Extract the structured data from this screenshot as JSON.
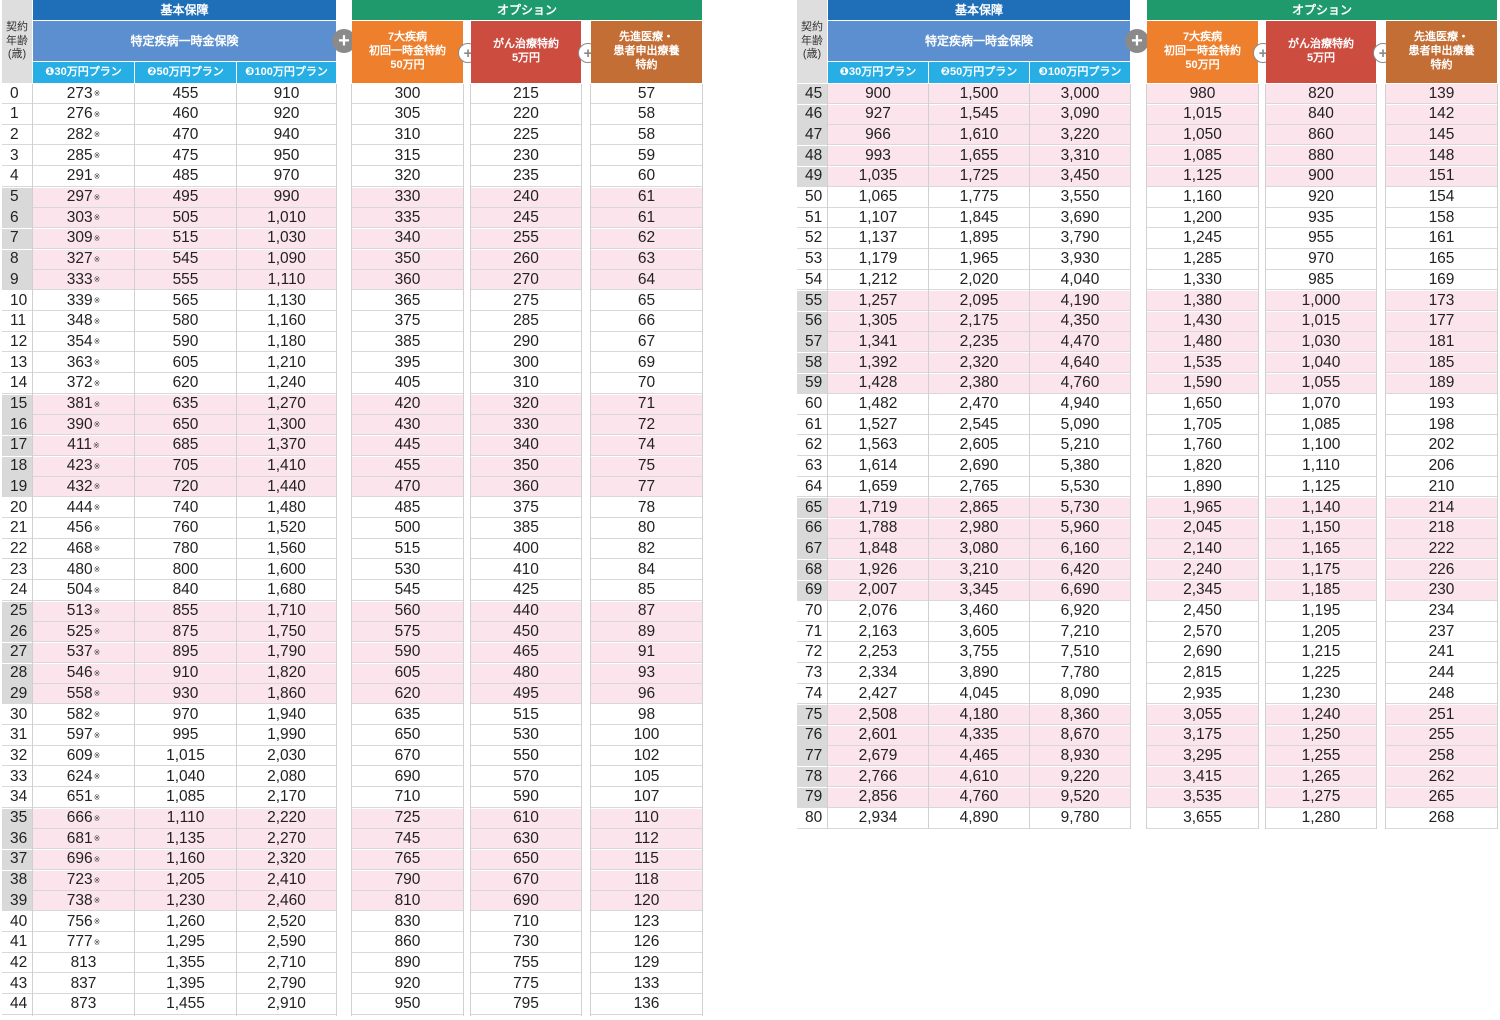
{
  "headers": {
    "age": "契約\n年齢\n(歳)",
    "kihon": "基本保障",
    "tokutei": "特定疾病一時金保険",
    "plans": [
      "❶30万円プラン",
      "❷50万円プラン",
      "❸100万円プラン"
    ],
    "option": "オプション",
    "opt1": "7大疾病\n初回一時金特約\n50万円",
    "opt2": "がん治療特約\n5万円",
    "opt3": "先進医療・\n患者申出療養\n特約",
    "plus": "+"
  },
  "note_mark": "※",
  "left_rows": [
    [
      "0",
      "273",
      true,
      "455",
      "910",
      "300",
      "215",
      "57"
    ],
    [
      "1",
      "276",
      true,
      "460",
      "920",
      "305",
      "220",
      "58"
    ],
    [
      "2",
      "282",
      true,
      "470",
      "940",
      "310",
      "225",
      "58"
    ],
    [
      "3",
      "285",
      true,
      "475",
      "950",
      "315",
      "230",
      "59"
    ],
    [
      "4",
      "291",
      true,
      "485",
      "970",
      "320",
      "235",
      "60"
    ],
    [
      "5",
      "297",
      true,
      "495",
      "990",
      "330",
      "240",
      "61"
    ],
    [
      "6",
      "303",
      true,
      "505",
      "1,010",
      "335",
      "245",
      "61"
    ],
    [
      "7",
      "309",
      true,
      "515",
      "1,030",
      "340",
      "255",
      "62"
    ],
    [
      "8",
      "327",
      true,
      "545",
      "1,090",
      "350",
      "260",
      "63"
    ],
    [
      "9",
      "333",
      true,
      "555",
      "1,110",
      "360",
      "270",
      "64"
    ],
    [
      "10",
      "339",
      true,
      "565",
      "1,130",
      "365",
      "275",
      "65"
    ],
    [
      "11",
      "348",
      true,
      "580",
      "1,160",
      "375",
      "285",
      "66"
    ],
    [
      "12",
      "354",
      true,
      "590",
      "1,180",
      "385",
      "290",
      "67"
    ],
    [
      "13",
      "363",
      true,
      "605",
      "1,210",
      "395",
      "300",
      "69"
    ],
    [
      "14",
      "372",
      true,
      "620",
      "1,240",
      "405",
      "310",
      "70"
    ],
    [
      "15",
      "381",
      true,
      "635",
      "1,270",
      "420",
      "320",
      "71"
    ],
    [
      "16",
      "390",
      true,
      "650",
      "1,300",
      "430",
      "330",
      "72"
    ],
    [
      "17",
      "411",
      true,
      "685",
      "1,370",
      "445",
      "340",
      "74"
    ],
    [
      "18",
      "423",
      true,
      "705",
      "1,410",
      "455",
      "350",
      "75"
    ],
    [
      "19",
      "432",
      true,
      "720",
      "1,440",
      "470",
      "360",
      "77"
    ],
    [
      "20",
      "444",
      true,
      "740",
      "1,480",
      "485",
      "375",
      "78"
    ],
    [
      "21",
      "456",
      true,
      "760",
      "1,520",
      "500",
      "385",
      "80"
    ],
    [
      "22",
      "468",
      true,
      "780",
      "1,560",
      "515",
      "400",
      "82"
    ],
    [
      "23",
      "480",
      true,
      "800",
      "1,600",
      "530",
      "410",
      "84"
    ],
    [
      "24",
      "504",
      true,
      "840",
      "1,680",
      "545",
      "425",
      "85"
    ],
    [
      "25",
      "513",
      true,
      "855",
      "1,710",
      "560",
      "440",
      "87"
    ],
    [
      "26",
      "525",
      true,
      "875",
      "1,750",
      "575",
      "450",
      "89"
    ],
    [
      "27",
      "537",
      true,
      "895",
      "1,790",
      "590",
      "465",
      "91"
    ],
    [
      "28",
      "546",
      true,
      "910",
      "1,820",
      "605",
      "480",
      "93"
    ],
    [
      "29",
      "558",
      true,
      "930",
      "1,860",
      "620",
      "495",
      "96"
    ],
    [
      "30",
      "582",
      true,
      "970",
      "1,940",
      "635",
      "515",
      "98"
    ],
    [
      "31",
      "597",
      true,
      "995",
      "1,990",
      "650",
      "530",
      "100"
    ],
    [
      "32",
      "609",
      true,
      "1,015",
      "2,030",
      "670",
      "550",
      "102"
    ],
    [
      "33",
      "624",
      true,
      "1,040",
      "2,080",
      "690",
      "570",
      "105"
    ],
    [
      "34",
      "651",
      true,
      "1,085",
      "2,170",
      "710",
      "590",
      "107"
    ],
    [
      "35",
      "666",
      true,
      "1,110",
      "2,220",
      "725",
      "610",
      "110"
    ],
    [
      "36",
      "681",
      true,
      "1,135",
      "2,270",
      "745",
      "630",
      "112"
    ],
    [
      "37",
      "696",
      true,
      "1,160",
      "2,320",
      "765",
      "650",
      "115"
    ],
    [
      "38",
      "723",
      true,
      "1,205",
      "2,410",
      "790",
      "670",
      "118"
    ],
    [
      "39",
      "738",
      true,
      "1,230",
      "2,460",
      "810",
      "690",
      "120"
    ],
    [
      "40",
      "756",
      true,
      "1,260",
      "2,520",
      "830",
      "710",
      "123"
    ],
    [
      "41",
      "777",
      true,
      "1,295",
      "2,590",
      "860",
      "730",
      "126"
    ],
    [
      "42",
      "813",
      false,
      "1,355",
      "2,710",
      "890",
      "755",
      "129"
    ],
    [
      "43",
      "837",
      false,
      "1,395",
      "2,790",
      "920",
      "775",
      "133"
    ],
    [
      "44",
      "873",
      false,
      "1,455",
      "2,910",
      "950",
      "795",
      "136"
    ]
  ],
  "right_rows": [
    [
      "45",
      "900",
      false,
      "1,500",
      "3,000",
      "980",
      "820",
      "139"
    ],
    [
      "46",
      "927",
      false,
      "1,545",
      "3,090",
      "1,015",
      "840",
      "142"
    ],
    [
      "47",
      "966",
      false,
      "1,610",
      "3,220",
      "1,050",
      "860",
      "145"
    ],
    [
      "48",
      "993",
      false,
      "1,655",
      "3,310",
      "1,085",
      "880",
      "148"
    ],
    [
      "49",
      "1,035",
      false,
      "1,725",
      "3,450",
      "1,125",
      "900",
      "151"
    ],
    [
      "50",
      "1,065",
      false,
      "1,775",
      "3,550",
      "1,160",
      "920",
      "154"
    ],
    [
      "51",
      "1,107",
      false,
      "1,845",
      "3,690",
      "1,200",
      "935",
      "158"
    ],
    [
      "52",
      "1,137",
      false,
      "1,895",
      "3,790",
      "1,245",
      "955",
      "161"
    ],
    [
      "53",
      "1,179",
      false,
      "1,965",
      "3,930",
      "1,285",
      "970",
      "165"
    ],
    [
      "54",
      "1,212",
      false,
      "2,020",
      "4,040",
      "1,330",
      "985",
      "169"
    ],
    [
      "55",
      "1,257",
      false,
      "2,095",
      "4,190",
      "1,380",
      "1,000",
      "173"
    ],
    [
      "56",
      "1,305",
      false,
      "2,175",
      "4,350",
      "1,430",
      "1,015",
      "177"
    ],
    [
      "57",
      "1,341",
      false,
      "2,235",
      "4,470",
      "1,480",
      "1,030",
      "181"
    ],
    [
      "58",
      "1,392",
      false,
      "2,320",
      "4,640",
      "1,535",
      "1,040",
      "185"
    ],
    [
      "59",
      "1,428",
      false,
      "2,380",
      "4,760",
      "1,590",
      "1,055",
      "189"
    ],
    [
      "60",
      "1,482",
      false,
      "2,470",
      "4,940",
      "1,650",
      "1,070",
      "193"
    ],
    [
      "61",
      "1,527",
      false,
      "2,545",
      "5,090",
      "1,705",
      "1,085",
      "198"
    ],
    [
      "62",
      "1,563",
      false,
      "2,605",
      "5,210",
      "1,760",
      "1,100",
      "202"
    ],
    [
      "63",
      "1,614",
      false,
      "2,690",
      "5,380",
      "1,820",
      "1,110",
      "206"
    ],
    [
      "64",
      "1,659",
      false,
      "2,765",
      "5,530",
      "1,890",
      "1,125",
      "210"
    ],
    [
      "65",
      "1,719",
      false,
      "2,865",
      "5,730",
      "1,965",
      "1,140",
      "214"
    ],
    [
      "66",
      "1,788",
      false,
      "2,980",
      "5,960",
      "2,045",
      "1,150",
      "218"
    ],
    [
      "67",
      "1,848",
      false,
      "3,080",
      "6,160",
      "2,140",
      "1,165",
      "222"
    ],
    [
      "68",
      "1,926",
      false,
      "3,210",
      "6,420",
      "2,240",
      "1,175",
      "226"
    ],
    [
      "69",
      "2,007",
      false,
      "3,345",
      "6,690",
      "2,345",
      "1,185",
      "230"
    ],
    [
      "70",
      "2,076",
      false,
      "3,460",
      "6,920",
      "2,450",
      "1,195",
      "234"
    ],
    [
      "71",
      "2,163",
      false,
      "3,605",
      "7,210",
      "2,570",
      "1,205",
      "237"
    ],
    [
      "72",
      "2,253",
      false,
      "3,755",
      "7,510",
      "2,690",
      "1,215",
      "241"
    ],
    [
      "73",
      "2,334",
      false,
      "3,890",
      "7,780",
      "2,815",
      "1,225",
      "244"
    ],
    [
      "74",
      "2,427",
      false,
      "4,045",
      "8,090",
      "2,935",
      "1,230",
      "248"
    ],
    [
      "75",
      "2,508",
      false,
      "4,180",
      "8,360",
      "3,055",
      "1,240",
      "251"
    ],
    [
      "76",
      "2,601",
      false,
      "4,335",
      "8,670",
      "3,175",
      "1,250",
      "255"
    ],
    [
      "77",
      "2,679",
      false,
      "4,465",
      "8,930",
      "3,295",
      "1,255",
      "258"
    ],
    [
      "78",
      "2,766",
      false,
      "4,610",
      "9,220",
      "3,415",
      "1,265",
      "262"
    ],
    [
      "79",
      "2,856",
      false,
      "4,760",
      "9,520",
      "3,535",
      "1,275",
      "265"
    ],
    [
      "80",
      "2,934",
      false,
      "4,890",
      "9,780",
      "3,655",
      "1,280",
      "268"
    ]
  ],
  "colors": {
    "kihon": "#1e6fb8",
    "tokutei": "#5b8fcf",
    "plan": "#27aee5",
    "option": "#1f9a6d",
    "opt1": "#ee7f2d",
    "opt2": "#cc4d40",
    "opt3": "#c36e34",
    "pink_band": "#fbe4ec",
    "age_band": "#d9d9d9"
  }
}
